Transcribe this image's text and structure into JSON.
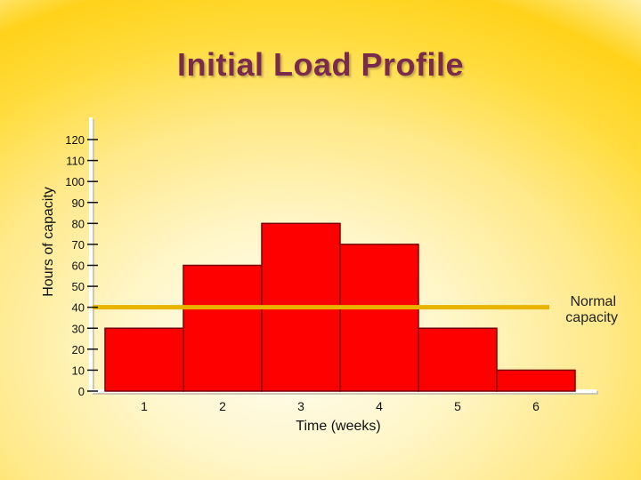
{
  "colors": {
    "bar_fill": "#ff0000",
    "bar_stroke": "#7a0000",
    "capacity_line": "#e8b400",
    "title": "#7a2a4a"
  },
  "chart_data": {
    "type": "bar",
    "title": "Initial Load Profile",
    "xlabel": "Time (weeks)",
    "ylabel": "Hours of capacity",
    "categories": [
      "1",
      "2",
      "3",
      "4",
      "5",
      "6"
    ],
    "values": [
      30,
      60,
      80,
      70,
      30,
      10
    ],
    "yticks": [
      0,
      10,
      20,
      30,
      40,
      50,
      60,
      70,
      80,
      90,
      100,
      110,
      120
    ],
    "ylim": [
      0,
      120
    ],
    "grid": false,
    "reference_line": {
      "label_line1": "Normal",
      "label_line2": "capacity",
      "value": 40
    }
  }
}
